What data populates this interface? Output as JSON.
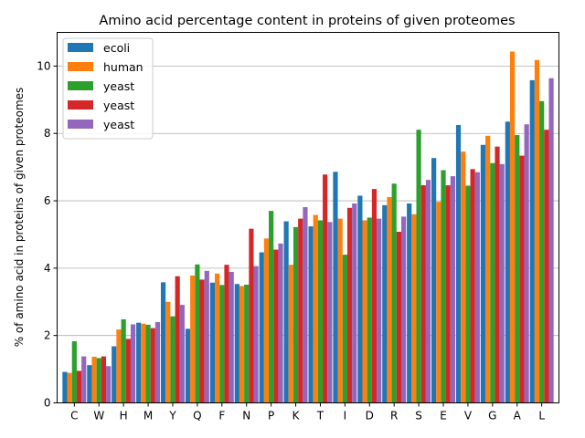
{
  "chart_data": {
    "type": "bar",
    "title": "Amino acid percentage content in proteins of given proteomes",
    "xlabel": "",
    "ylabel": "% of amino acid in proteins of given proteomes",
    "ylim": [
      0,
      11
    ],
    "yticks": [
      0,
      2,
      4,
      6,
      8,
      10
    ],
    "grid": "horizontal",
    "legend_position": "top-left",
    "categories": [
      "C",
      "W",
      "H",
      "M",
      "Y",
      "Q",
      "F",
      "N",
      "P",
      "K",
      "T",
      "I",
      "D",
      "R",
      "S",
      "E",
      "V",
      "G",
      "A",
      "L"
    ],
    "series": [
      {
        "name": "ecoli",
        "color": "#1f77b4",
        "values": [
          0.92,
          1.12,
          1.68,
          2.38,
          3.58,
          2.2,
          3.57,
          3.53,
          4.47,
          5.39,
          5.24,
          6.86,
          6.15,
          5.87,
          5.92,
          7.27,
          8.25,
          7.66,
          8.35,
          9.58
        ]
      },
      {
        "name": "human",
        "color": "#ff7f0e",
        "values": [
          0.89,
          1.37,
          2.18,
          2.35,
          3.0,
          3.78,
          3.84,
          3.47,
          4.88,
          4.1,
          5.58,
          5.47,
          5.42,
          6.11,
          5.6,
          5.97,
          7.46,
          7.93,
          10.43,
          10.18
        ]
      },
      {
        "name": "yeast",
        "color": "#2ca02c",
        "values": [
          1.83,
          1.33,
          2.48,
          2.32,
          2.57,
          4.11,
          3.5,
          3.51,
          5.7,
          5.22,
          5.42,
          4.4,
          5.5,
          6.51,
          8.11,
          6.91,
          6.45,
          7.12,
          7.95,
          8.96
        ]
      },
      {
        "name": "yeast",
        "color": "#d62728",
        "values": [
          0.95,
          1.38,
          1.9,
          2.22,
          3.76,
          3.66,
          4.1,
          5.17,
          4.55,
          5.47,
          6.78,
          5.79,
          6.35,
          5.08,
          6.46,
          6.46,
          6.94,
          7.61,
          7.34,
          8.11
        ]
      },
      {
        "name": "yeast",
        "color": "#9467bd",
        "values": [
          1.38,
          1.09,
          2.33,
          2.4,
          2.91,
          3.92,
          3.89,
          4.06,
          4.73,
          5.81,
          5.37,
          5.92,
          5.47,
          5.53,
          6.62,
          6.73,
          6.85,
          7.09,
          8.27,
          9.64
        ]
      }
    ]
  }
}
